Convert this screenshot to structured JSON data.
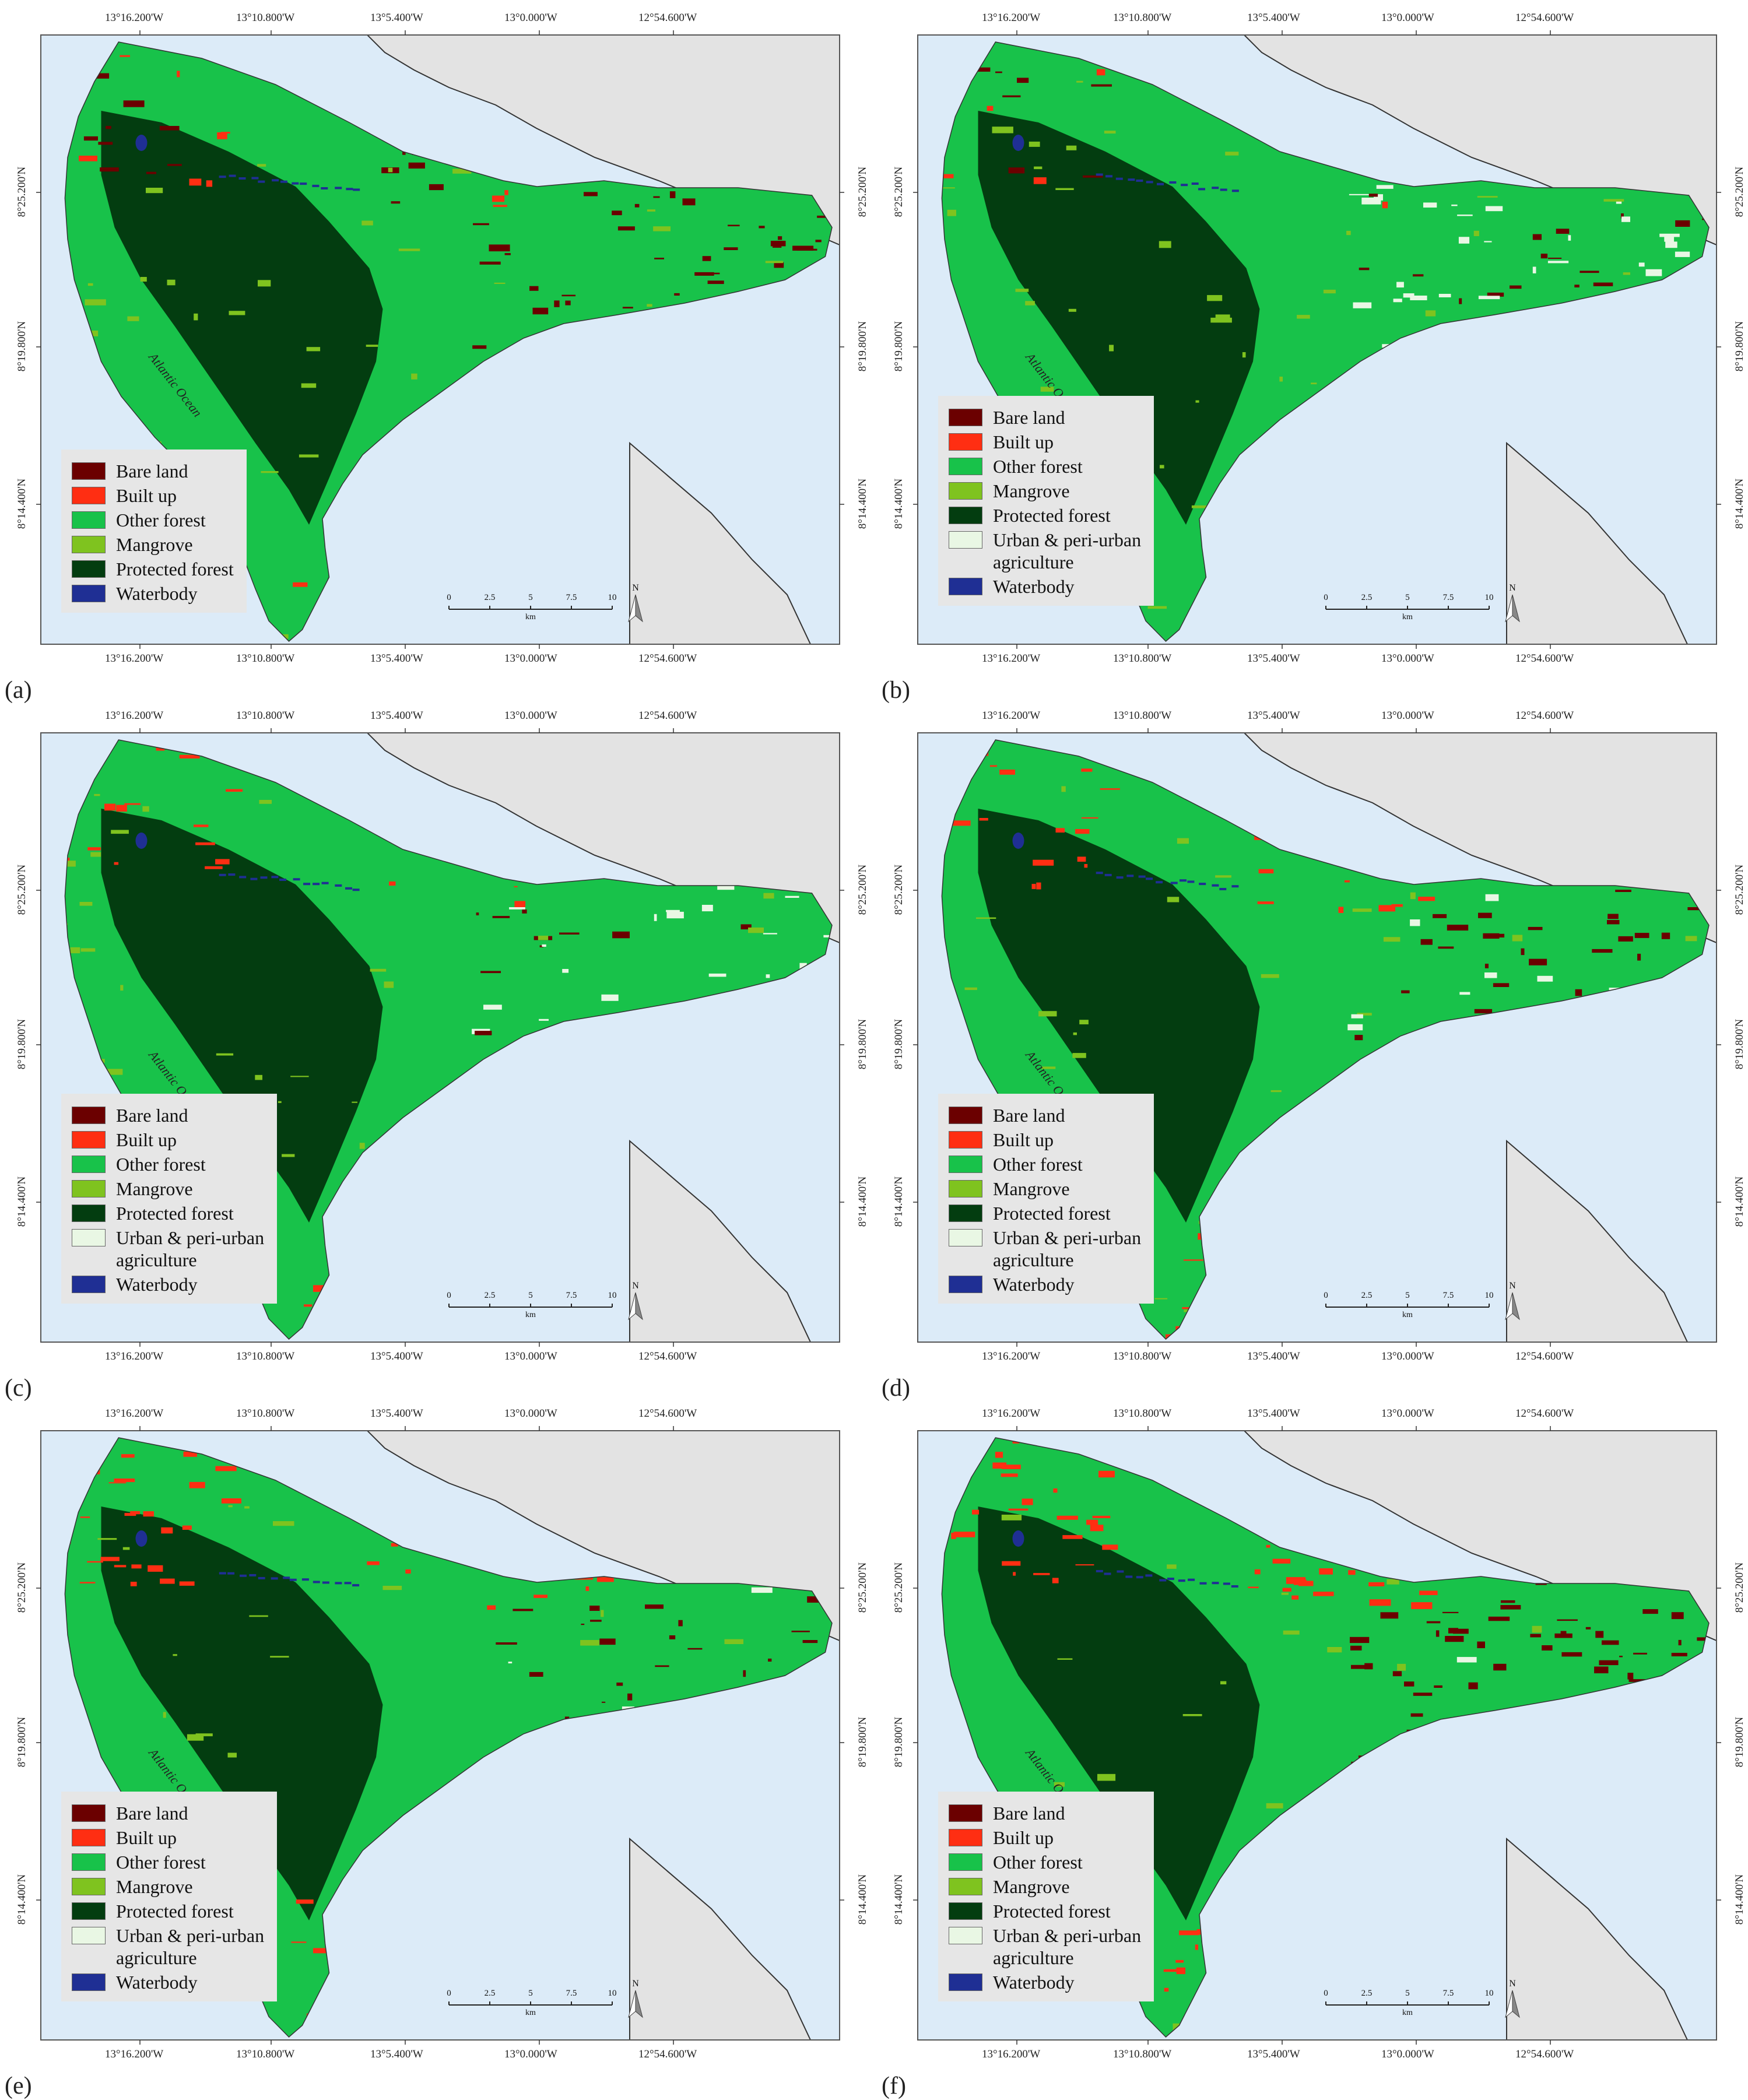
{
  "figure": {
    "x_ticks_top": [
      "13°16.200'W",
      "13°10.800'W",
      "13°5.400'W",
      "13°0.000'W",
      "12°54.600'W"
    ],
    "x_ticks_bottom": [
      "13°16.200'W",
      "13°10.800'W",
      "13°5.400'W",
      "13°0.000'W",
      "12°54.600'W"
    ],
    "y_ticks": [
      "8°25.200'N",
      "8°19.800'N",
      "8°14.400'N"
    ],
    "ocean_label": "Atlantic Ocean",
    "north_label": "N",
    "scale": {
      "ticks": [
        "0",
        "2.5",
        "5",
        "7.5",
        "10"
      ],
      "unit": "km"
    },
    "colors": {
      "bare_land": "#6b0000",
      "built_up": "#ff2e12",
      "other_forest": "#18c24a",
      "mangrove": "#7fc31f",
      "protected_forest": "#033d10",
      "urban_agri": "#e9f7e4",
      "waterbody": "#1f2f94",
      "ocean": "#dcebf8",
      "land_outside": "#e3e3e3"
    }
  },
  "panels": [
    {
      "letter": "(a)",
      "legend": [
        {
          "label": "Bare land",
          "color_key": "bare_land"
        },
        {
          "label": "Built up",
          "color_key": "built_up"
        },
        {
          "label": "Other forest",
          "color_key": "other_forest"
        },
        {
          "label": "Mangrove",
          "color_key": "mangrove"
        },
        {
          "label": "Protected forest",
          "color_key": "protected_forest"
        },
        {
          "label": "Waterbody",
          "color_key": "waterbody"
        }
      ]
    },
    {
      "letter": "(b)",
      "legend": [
        {
          "label": "Bare land",
          "color_key": "bare_land"
        },
        {
          "label": "Built up",
          "color_key": "built_up"
        },
        {
          "label": "Other forest",
          "color_key": "other_forest"
        },
        {
          "label": "Mangrove",
          "color_key": "mangrove"
        },
        {
          "label": "Protected forest",
          "color_key": "protected_forest"
        },
        {
          "label": "Urban & peri-urban\n agriculture",
          "color_key": "urban_agri"
        },
        {
          "label": "Waterbody",
          "color_key": "waterbody"
        }
      ]
    },
    {
      "letter": "(c)",
      "legend": [
        {
          "label": "Bare land",
          "color_key": "bare_land"
        },
        {
          "label": "Built up",
          "color_key": "built_up"
        },
        {
          "label": "Other forest",
          "color_key": "other_forest"
        },
        {
          "label": "Mangrove",
          "color_key": "mangrove"
        },
        {
          "label": "Protected forest",
          "color_key": "protected_forest"
        },
        {
          "label": "Urban & peri-urban\n agriculture",
          "color_key": "urban_agri"
        },
        {
          "label": "Waterbody",
          "color_key": "waterbody"
        }
      ]
    },
    {
      "letter": "(d)",
      "legend": [
        {
          "label": "Bare land",
          "color_key": "bare_land"
        },
        {
          "label": "Built up",
          "color_key": "built_up"
        },
        {
          "label": "Other forest",
          "color_key": "other_forest"
        },
        {
          "label": "Mangrove",
          "color_key": "mangrove"
        },
        {
          "label": "Protected forest",
          "color_key": "protected_forest"
        },
        {
          "label": "Urban & peri-urban\n agriculture",
          "color_key": "urban_agri"
        },
        {
          "label": "Waterbody",
          "color_key": "waterbody"
        }
      ]
    },
    {
      "letter": "(e)",
      "legend": [
        {
          "label": "Bare land",
          "color_key": "bare_land"
        },
        {
          "label": "Built up",
          "color_key": "built_up"
        },
        {
          "label": "Other forest",
          "color_key": "other_forest"
        },
        {
          "label": "Mangrove",
          "color_key": "mangrove"
        },
        {
          "label": "Protected forest",
          "color_key": "protected_forest"
        },
        {
          "label": "Urban & peri-urban\n agriculture",
          "color_key": "urban_agri"
        },
        {
          "label": "Waterbody",
          "color_key": "waterbody"
        }
      ]
    },
    {
      "letter": "(f)",
      "legend": [
        {
          "label": "Bare land",
          "color_key": "bare_land"
        },
        {
          "label": "Built up",
          "color_key": "built_up"
        },
        {
          "label": "Other forest",
          "color_key": "other_forest"
        },
        {
          "label": "Mangrove",
          "color_key": "mangrove"
        },
        {
          "label": "Protected forest",
          "color_key": "protected_forest"
        },
        {
          "label": "Urban & peri-urban\n agriculture",
          "color_key": "urban_agri"
        },
        {
          "label": "Waterbody",
          "color_key": "waterbody"
        }
      ]
    }
  ]
}
